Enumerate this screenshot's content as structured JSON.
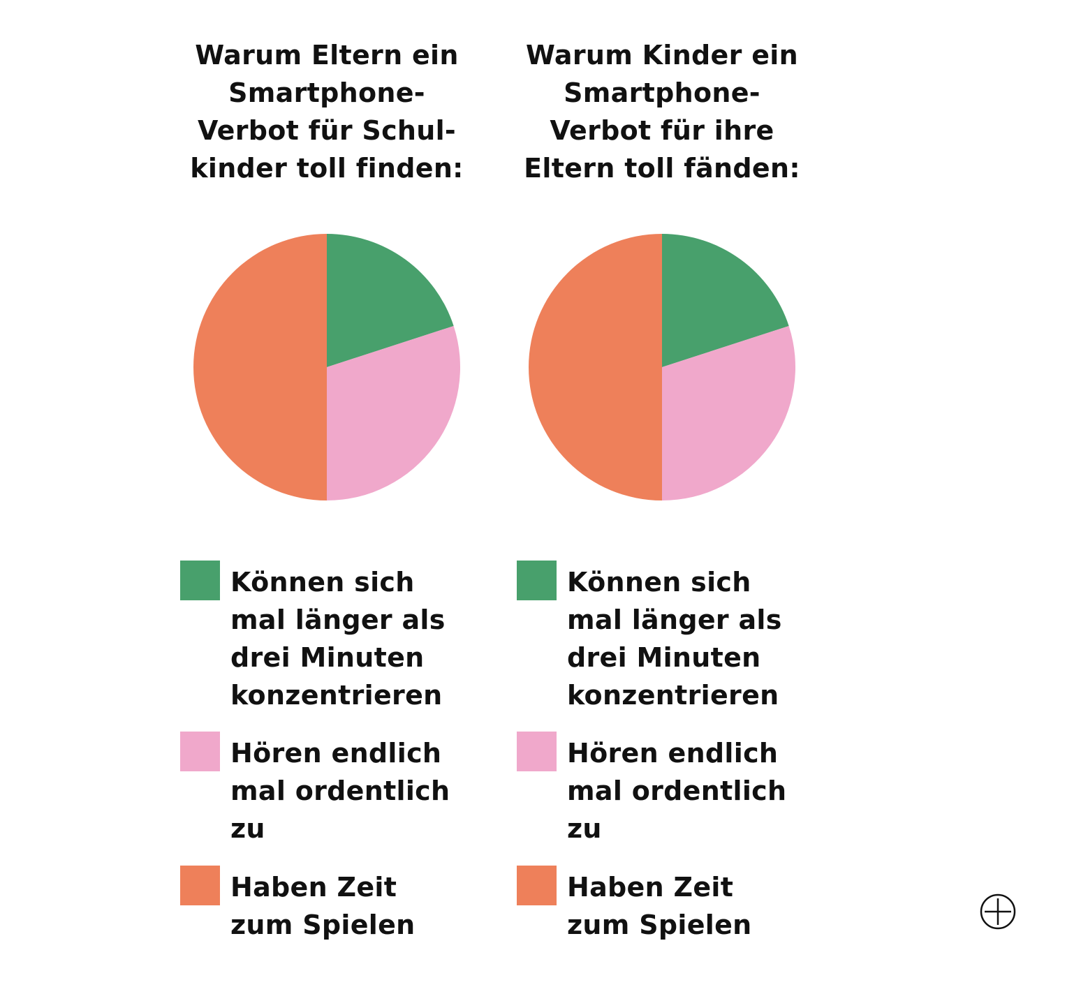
{
  "chart_data": [
    {
      "type": "pie",
      "title": "Warum Eltern ein\nSmartphone-\nVerbot für Schul-\nkinder toll finden:",
      "categories": [
        "Können sich mal länger als drei Minuten konzentrieren",
        "Hören endlich mal ordentlich zu",
        "Haben Zeit zum Spielen"
      ],
      "values": [
        20,
        30,
        50
      ],
      "colors": [
        "#48a06c",
        "#f0a8cb",
        "#ee805a"
      ],
      "legend": [
        {
          "label": "Können sich\nmal länger als\ndrei Minuten\nkonzentrieren",
          "color": "#48a06c"
        },
        {
          "label": "Hören endlich\nmal ordentlich\nzu",
          "color": "#f0a8cb"
        },
        {
          "label": "Haben Zeit\nzum Spielen",
          "color": "#ee805a"
        }
      ],
      "legend_position": "bottom"
    },
    {
      "type": "pie",
      "title": "Warum Kinder ein\nSmartphone-\nVerbot für ihre\nEltern toll fänden:",
      "categories": [
        "Können sich mal länger als drei Minuten konzentrieren",
        "Hören endlich mal ordentlich zu",
        "Haben Zeit zum Spielen"
      ],
      "values": [
        20,
        30,
        50
      ],
      "colors": [
        "#48a06c",
        "#f0a8cb",
        "#ee805a"
      ],
      "legend": [
        {
          "label": "Können sich\nmal länger als\ndrei Minuten\nkonzentrieren",
          "color": "#48a06c"
        },
        {
          "label": "Hören endlich\nmal ordentlich\nzu",
          "color": "#f0a8cb"
        },
        {
          "label": "Haben Zeit\nzum Spielen",
          "color": "#ee805a"
        }
      ],
      "legend_position": "bottom"
    }
  ],
  "controls": {
    "zoom_icon": "circle-plus-icon"
  }
}
